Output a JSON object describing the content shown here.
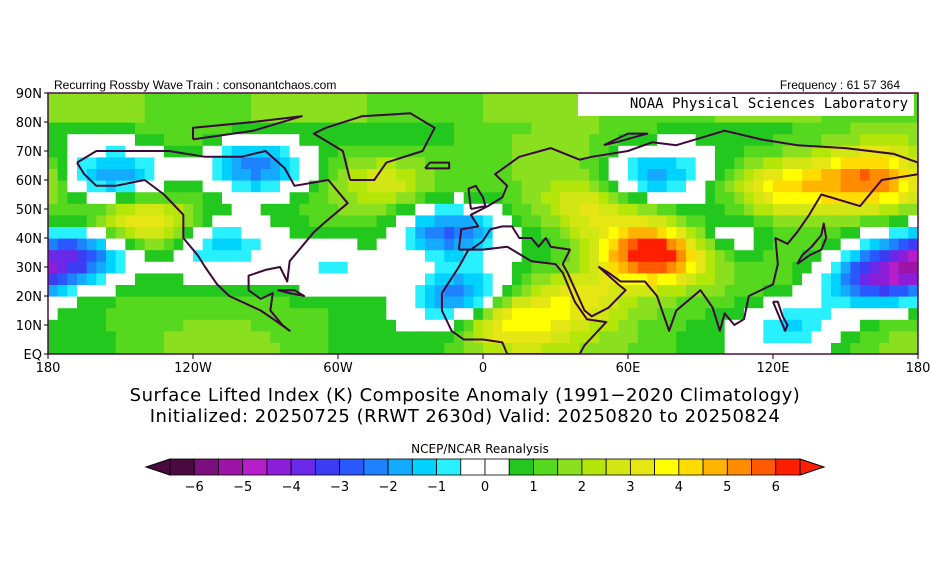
{
  "header": {
    "left_text": "Recurring Rossby Wave Train : consonantchaos.com",
    "right_text": "Frequency : 61 57 364"
  },
  "watermark": "NOAA Physical Sciences Laboratory",
  "chart_data": {
    "type": "heatmap",
    "title": "Surface Lifted Index (K) Composite Anomaly (1991−2020 Climatology)",
    "subtitle": "Initialized: 20250725 (RRWT 2630d) Valid: 20250820 to 20250824",
    "source_label": "NCEP/NCAR Reanalysis",
    "x_ticks": [
      "180",
      "120W",
      "60W",
      "0",
      "60E",
      "120E",
      "180"
    ],
    "x_tick_lon": [
      -180,
      -120,
      -60,
      0,
      60,
      120,
      180
    ],
    "y_ticks": [
      "EQ",
      "10N",
      "20N",
      "30N",
      "40N",
      "50N",
      "60N",
      "70N",
      "80N",
      "90N"
    ],
    "y_tick_lat": [
      0,
      10,
      20,
      30,
      40,
      50,
      60,
      70,
      80,
      90
    ],
    "xlim": [
      -180,
      180
    ],
    "ylim": [
      0,
      90
    ],
    "colorbar": {
      "labels": [
        "−6",
        "−5",
        "−4",
        "−3",
        "−2",
        "−1",
        "0",
        "1",
        "2",
        "3",
        "4",
        "5",
        "6"
      ],
      "label_values": [
        -6,
        -5,
        -4,
        -3,
        -2,
        -1,
        0,
        1,
        2,
        3,
        4,
        5,
        6
      ],
      "colors": [
        "#4a0a3f",
        "#7a0f7d",
        "#9d14a6",
        "#b51ec8",
        "#8c1ed9",
        "#6a28e8",
        "#3c3cf5",
        "#2a58ff",
        "#1e82ff",
        "#14aaff",
        "#00d2ff",
        "#28f0ff",
        "#ffffff",
        "#ffffff",
        "#22c81e",
        "#55d81e",
        "#8ae01e",
        "#b4e60a",
        "#d2e614",
        "#e6e614",
        "#ffff00",
        "#ffdc00",
        "#ffb400",
        "#ff8c00",
        "#ff5a00",
        "#ff1e00"
      ]
    },
    "anomaly_centers": [
      {
        "lon": -150,
        "lat": 62,
        "value": -3
      },
      {
        "lon": -95,
        "lat": 65,
        "value": -4
      },
      {
        "lon": -165,
        "lat": 35,
        "value": -4
      },
      {
        "lon": -110,
        "lat": 38,
        "value": -2
      },
      {
        "lon": -15,
        "lat": 42,
        "value": -4
      },
      {
        "lon": -10,
        "lat": 20,
        "value": -4
      },
      {
        "lon": 70,
        "lat": 35,
        "value": 6
      },
      {
        "lon": 160,
        "lat": 60,
        "value": 4
      },
      {
        "lon": 125,
        "lat": 58,
        "value": 3
      },
      {
        "lon": 70,
        "lat": 62,
        "value": -3
      },
      {
        "lon": 100,
        "lat": 40,
        "value": -2
      },
      {
        "lon": 175,
        "lat": 30,
        "value": -3
      },
      {
        "lon": 40,
        "lat": 20,
        "value": 2
      },
      {
        "lon": 10,
        "lat": 12,
        "value": 3
      },
      {
        "lon": -140,
        "lat": 45,
        "value": 3
      },
      {
        "lon": -40,
        "lat": 60,
        "value": 2
      },
      {
        "lon": 160,
        "lat": 25,
        "value": -3
      },
      {
        "lon": -60,
        "lat": 30,
        "value": -2
      },
      {
        "lon": 45,
        "lat": 50,
        "value": 2
      },
      {
        "lon": 130,
        "lat": 10,
        "value": -2
      }
    ]
  }
}
